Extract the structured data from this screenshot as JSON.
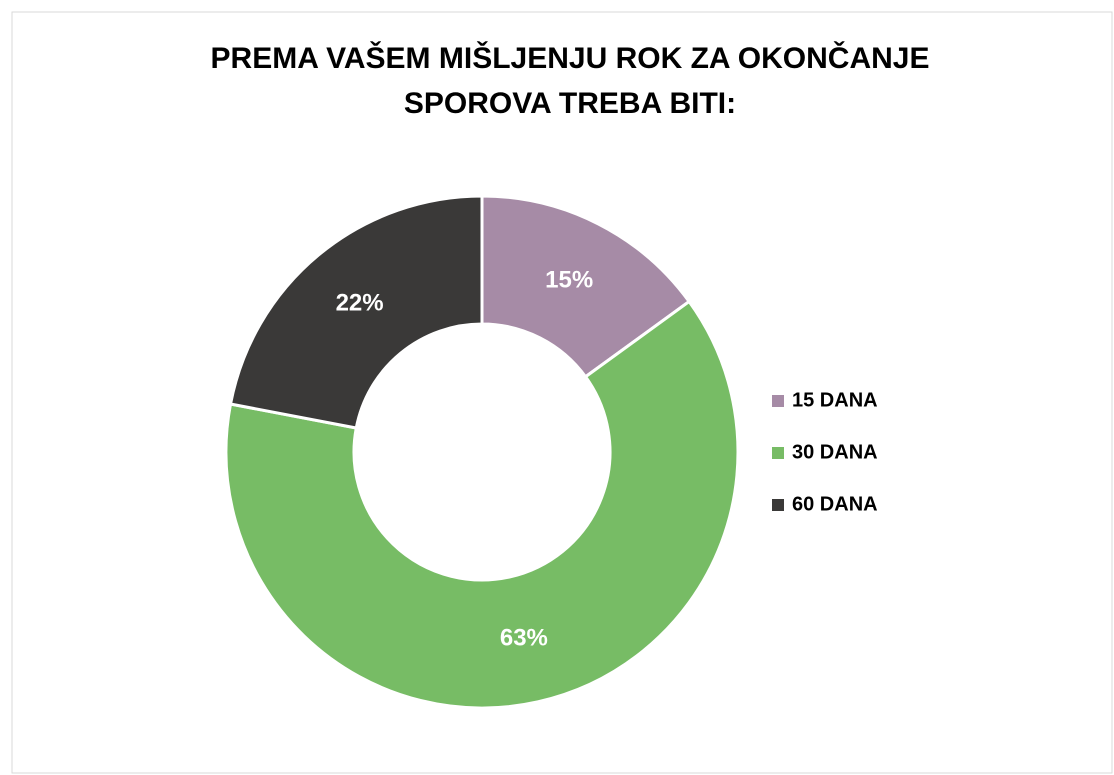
{
  "chart_data": {
    "type": "donut",
    "title": [
      "PREMA VAŠEM MIŠLJENJU ROK ZA OKONČANJE",
      "SPOROVA TREBA BITI:"
    ],
    "categories": [
      "15 DANA",
      "30 DANA",
      "60 DANA"
    ],
    "values": [
      15,
      63,
      22
    ],
    "value_labels": [
      "15%",
      "63%",
      "22%"
    ],
    "colors": [
      "#a68ba6",
      "#77bc65",
      "#3a3938"
    ],
    "legend": "right"
  }
}
